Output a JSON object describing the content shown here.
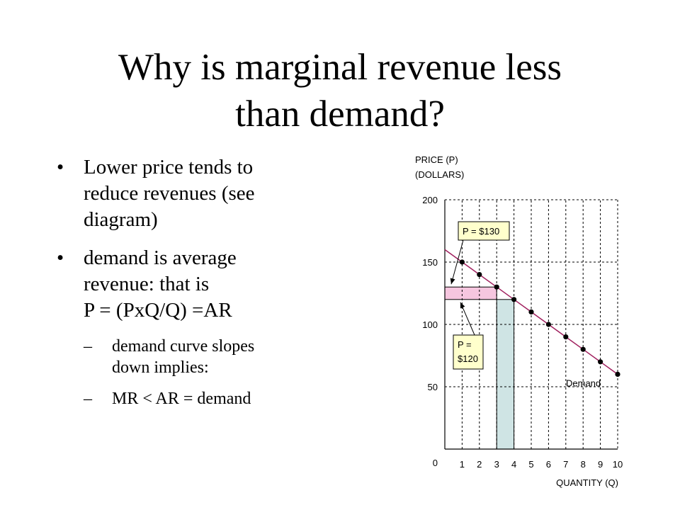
{
  "title": {
    "line1": "Why is marginal revenue less",
    "line2": "than demand?"
  },
  "bullets": [
    {
      "lines": [
        "Lower price tends to",
        "reduce revenues (see",
        "diagram)"
      ]
    },
    {
      "lines": [
        "demand is average",
        "revenue: that is",
        "P = (PxQ/Q) =AR"
      ]
    }
  ],
  "sub_bullets": [
    {
      "lines": [
        "demand curve slopes",
        "down implies:"
      ]
    },
    {
      "lines": [
        "MR < AR = demand"
      ]
    }
  ],
  "chart_data": {
    "type": "line",
    "ylabel_line1": "PRICE (P)",
    "ylabel_line2": "(DOLLARS)",
    "xlabel": "QUANTITY (Q)",
    "xlim": [
      0,
      10
    ],
    "ylim": [
      0,
      200
    ],
    "x_ticks": [
      "1",
      "2",
      "3",
      "4",
      "5",
      "6",
      "7",
      "8",
      "9",
      "10"
    ],
    "y_ticks": [
      "50",
      "100",
      "150",
      "200"
    ],
    "origin_label": "0",
    "grid": true,
    "series": [
      {
        "name": "Demand",
        "x": [
          0,
          1,
          2,
          3,
          4,
          5,
          6,
          7,
          8,
          9,
          10
        ],
        "y": [
          160,
          150,
          140,
          130,
          120,
          110,
          100,
          90,
          80,
          70,
          60
        ],
        "markers_from_x": 1
      }
    ],
    "annotations": [
      {
        "text_lines": [
          "P = $130"
        ],
        "points_to": [
          0,
          130
        ]
      },
      {
        "text_lines": [
          "P =",
          "$120"
        ],
        "points_to": [
          0,
          120
        ]
      }
    ],
    "shaded": [
      {
        "kind": "price-loss",
        "x": [
          0,
          3
        ],
        "y": [
          120,
          130
        ],
        "color": "#f6c6df"
      },
      {
        "kind": "quantity-gain",
        "x": [
          3,
          4
        ],
        "y": [
          0,
          120
        ],
        "color": "#cfe4e4"
      }
    ],
    "colors": {
      "demand_line": "#a0205e",
      "annotation_box": "#ffffcc"
    }
  }
}
